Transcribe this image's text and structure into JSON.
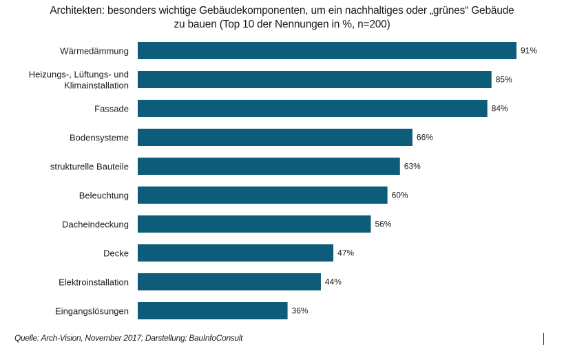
{
  "chart_data": {
    "type": "bar",
    "orientation": "horizontal",
    "title": "Architekten: besonders wichtige Gebäudekomponenten, um ein nachhaltiges oder „grünes“ Gebäude zu bauen (Top 10 der Nennungen in %, n=200)",
    "title_lines": [
      "Architekten: besonders wichtige Gebäudekomponenten,  um ein nachhaltiges oder „grünes“ Gebäude",
      "zu bauen (Top 10 der Nennungen  in %, n=200)"
    ],
    "categories": [
      [
        "Wärmedämmung"
      ],
      [
        "Heizungs-, Lüftungs- und",
        "Klimainstallation"
      ],
      [
        "Fassade"
      ],
      [
        "Bodensysteme"
      ],
      [
        "strukturelle Bauteile"
      ],
      [
        "Beleuchtung"
      ],
      [
        "Dacheindeckung"
      ],
      [
        "Decke"
      ],
      [
        "Elektroinstallation"
      ],
      [
        "Eingangslösungen"
      ]
    ],
    "values": [
      91,
      85,
      84,
      66,
      63,
      60,
      56,
      47,
      44,
      36
    ],
    "value_suffix": "%",
    "xlim": [
      0,
      91
    ],
    "xlabel": "",
    "ylabel": "",
    "grid": false,
    "legend": "none",
    "bar_color": "#0d5c7a"
  },
  "footer": {
    "source": "Quelle: Arch-Vision, November 2017; Darstellung: BauInfoConsult"
  }
}
